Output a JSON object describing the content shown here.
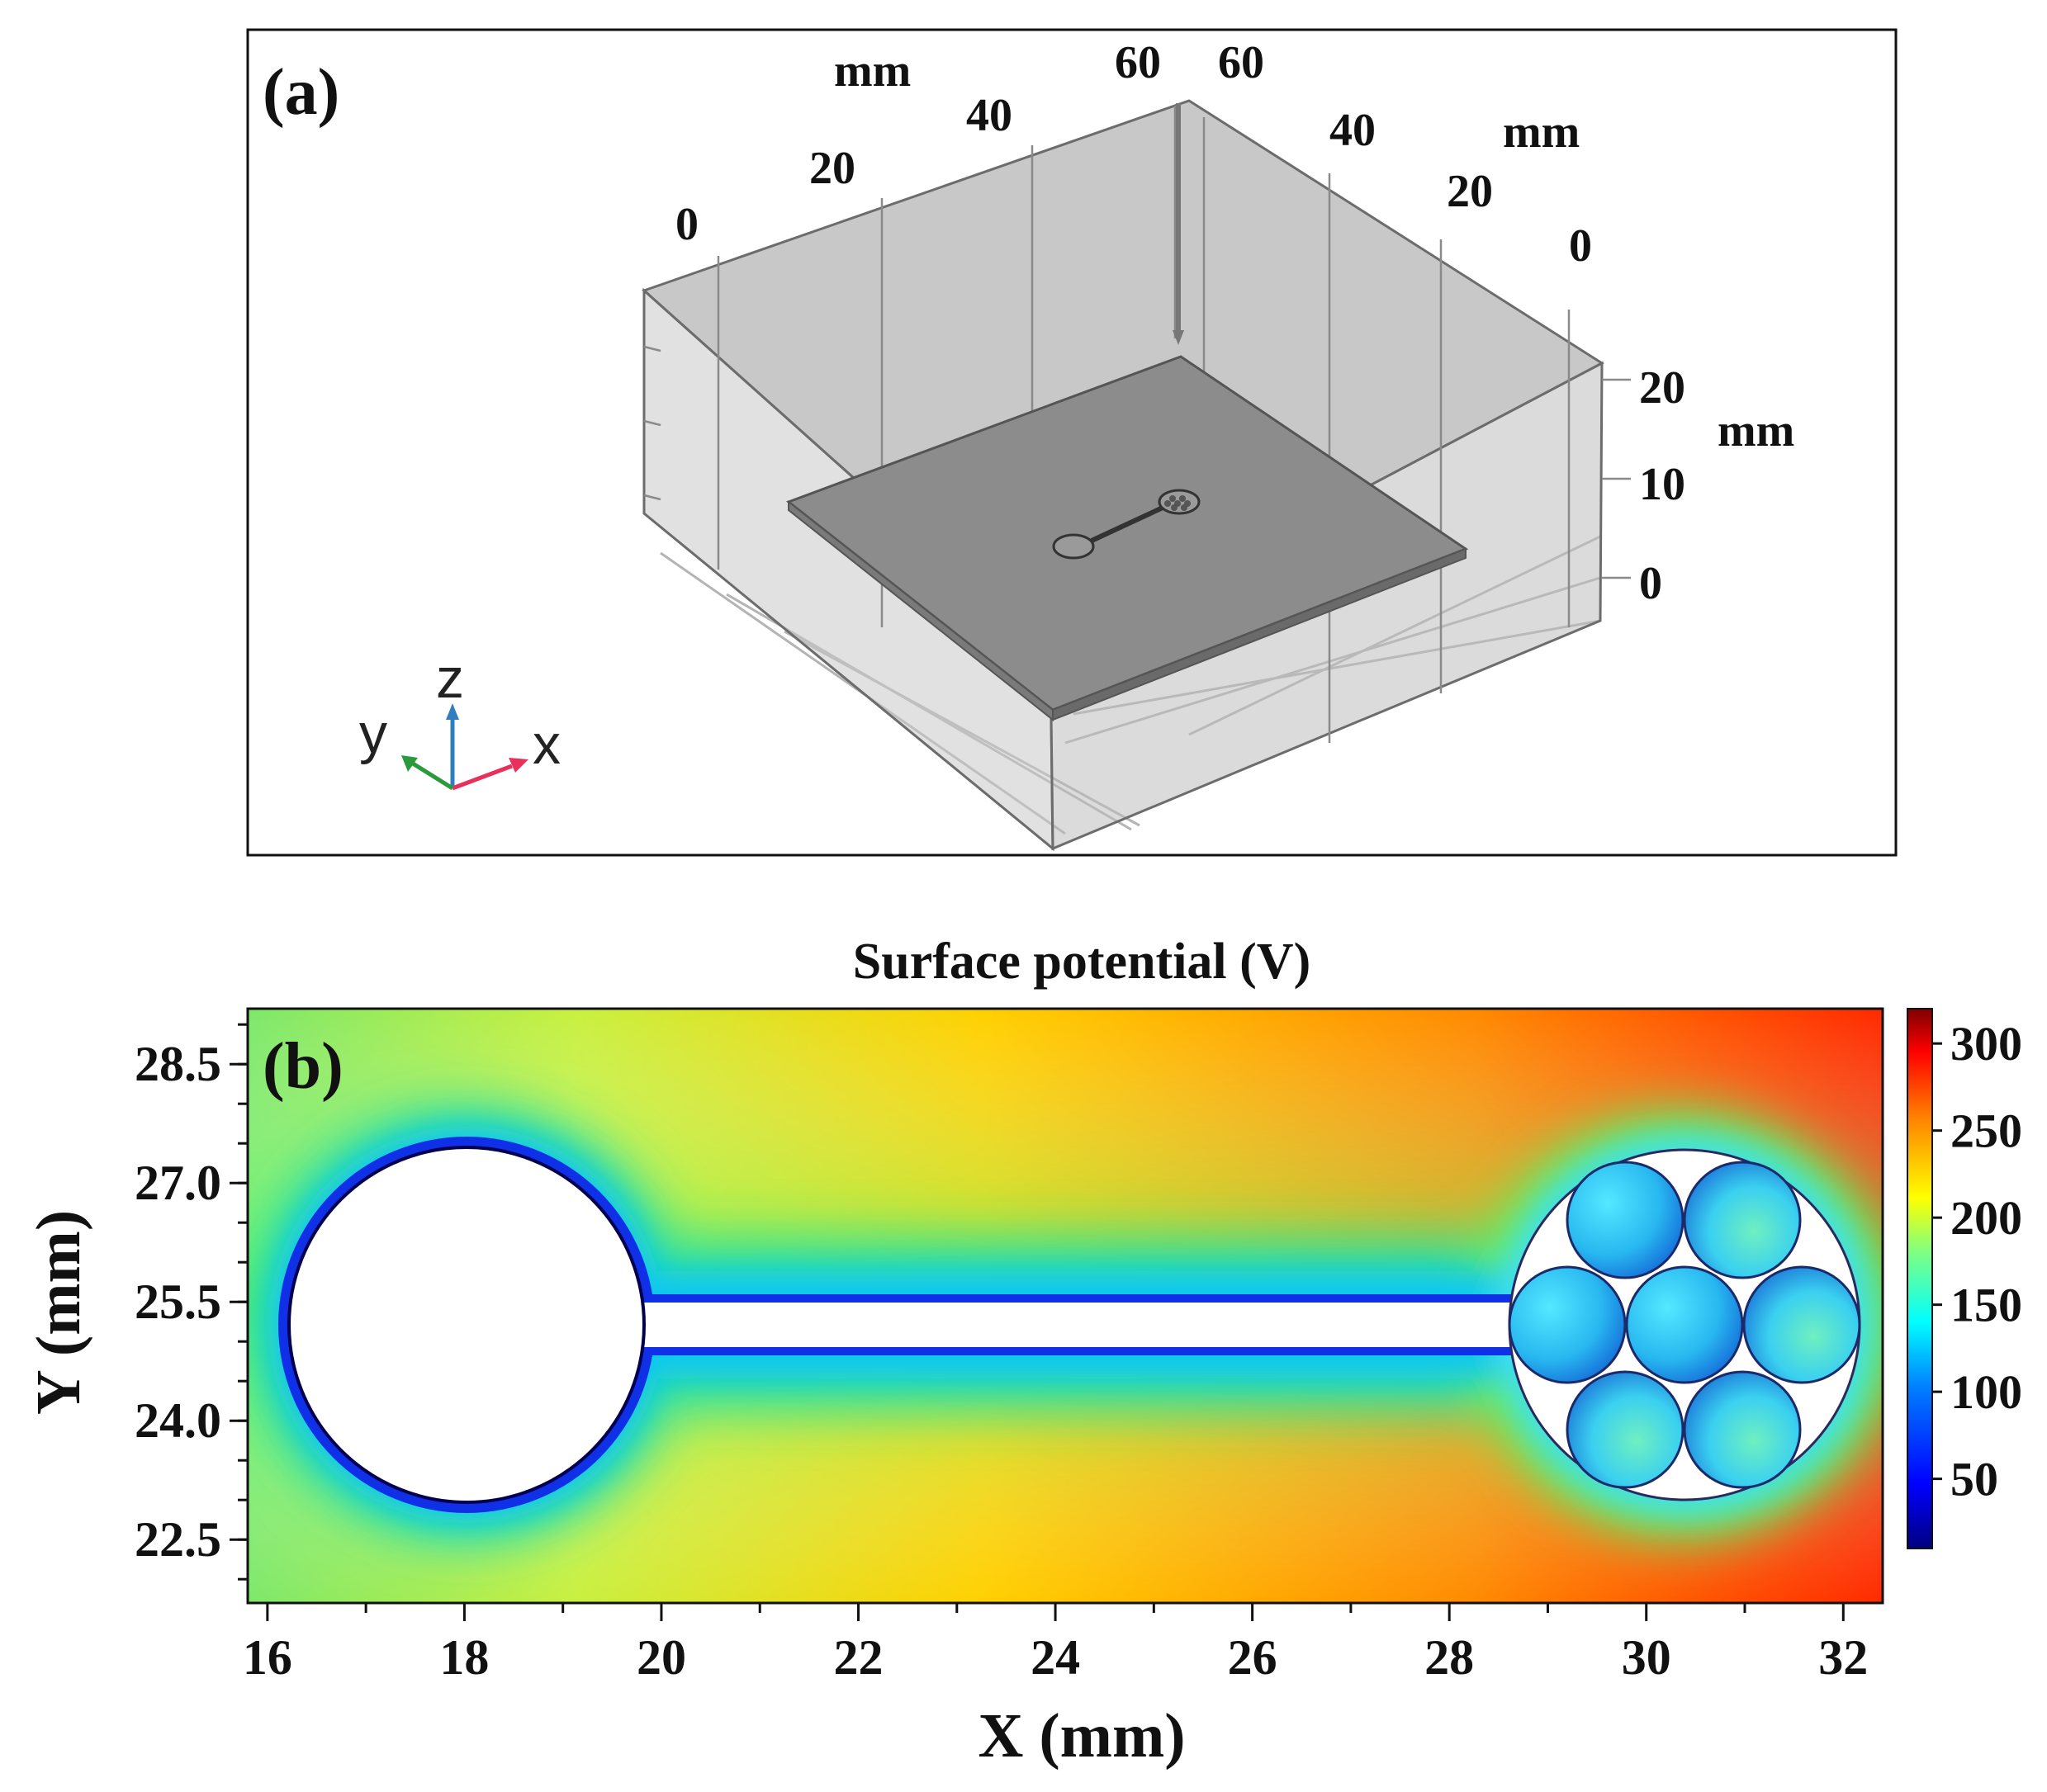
{
  "panel_a": {
    "label": "(a)",
    "axes": {
      "x": {
        "unit": "mm",
        "ticks": [
          "0",
          "20",
          "40",
          "60"
        ]
      },
      "y": {
        "unit": "mm",
        "ticks": [
          "60",
          "40",
          "20",
          "0"
        ]
      },
      "z": {
        "unit": "mm",
        "ticks": [
          "20",
          "10",
          "0"
        ]
      }
    },
    "triad": {
      "x": "x",
      "y": "y",
      "z": "z"
    },
    "colors": {
      "x_axis": "#e8315a",
      "y_axis": "#2a9a3a",
      "z_axis": "#2f7fc0"
    }
  },
  "panel_b": {
    "label": "(b)",
    "title": "Surface potential (V)",
    "xlabel": "X (mm)",
    "ylabel": "Y (mm)",
    "xticks": [
      "16",
      "18",
      "20",
      "22",
      "24",
      "26",
      "28",
      "30",
      "32"
    ],
    "yticks": [
      "28.5",
      "27.0",
      "25.5",
      "24.0",
      "22.5"
    ],
    "colorbar_ticks": [
      "300",
      "250",
      "200",
      "150",
      "100",
      "50"
    ],
    "colormap": [
      "#00007f",
      "#0000ff",
      "#0080ff",
      "#00ffff",
      "#80ff80",
      "#ffff00",
      "#ff8000",
      "#ff0000",
      "#7f0000"
    ]
  },
  "chart_data": {
    "type": "heatmap",
    "title": "Surface potential (V)",
    "xlabel": "X (mm)",
    "ylabel": "Y (mm)",
    "xlim": [
      15.8,
      32.4
    ],
    "ylim": [
      21.7,
      29.2
    ],
    "colorbar_range": [
      10,
      320
    ],
    "colorbar_ticks": [
      300,
      250,
      200,
      150,
      100,
      50
    ]
  }
}
